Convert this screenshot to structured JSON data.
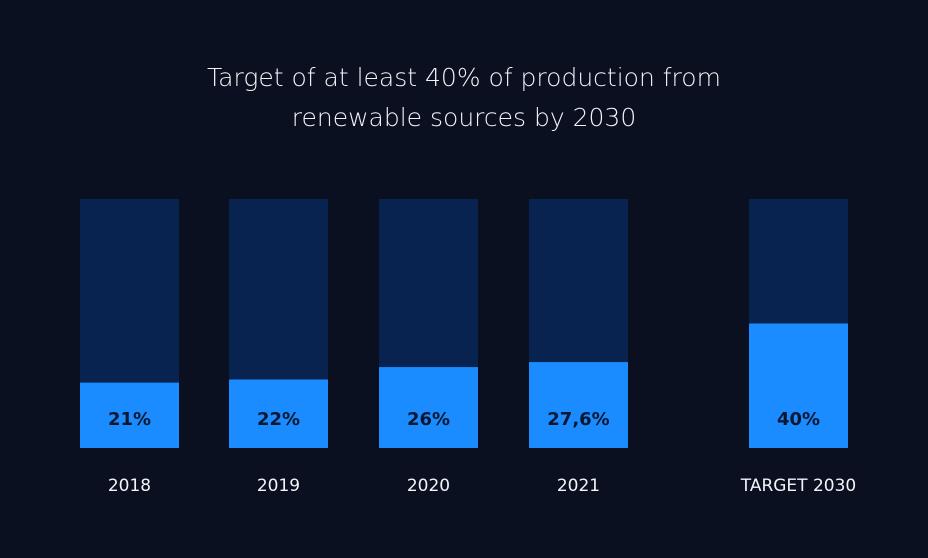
{
  "chart_data": {
    "type": "bar",
    "title_lines": [
      "Target of at least 40% of production from",
      "renewable sources by 2030"
    ],
    "categories": [
      "2018",
      "2019",
      "2020",
      "2021",
      "TARGET 2030"
    ],
    "values": [
      21,
      22,
      26,
      27.6,
      40
    ],
    "data_labels": [
      "21%",
      "22%",
      "26%",
      "27,6%",
      "40%"
    ],
    "ylim": [
      0,
      80
    ],
    "grid": false,
    "colors": {
      "background": "#0b1020",
      "track": "#08234f",
      "fill": "#1a8cff",
      "data_label": "#0b1730",
      "tick_label": "#f2f4f8"
    }
  }
}
